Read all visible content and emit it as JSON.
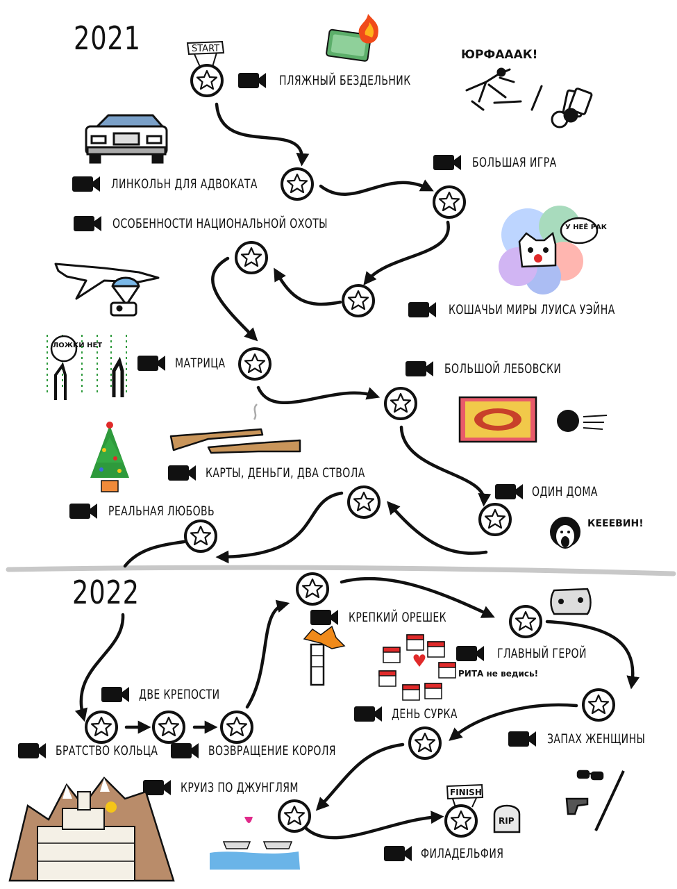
{
  "years": {
    "first": "2021",
    "second": "2022"
  },
  "badges": {
    "start": "START",
    "finish": "FINISH",
    "rip": "RIP"
  },
  "movies": [
    "ПЛЯЖНЫЙ БЕЗДЕЛЬНИК",
    "ЛИНКОЛЬН ДЛЯ АДВОКАТА",
    "БОЛЬШАЯ ИГРА",
    "ОСОБЕННОСТИ НАЦИОНАЛЬНОЙ ОХОТЫ",
    "КОШАЧЬИ МИРЫ ЛУИСА УЭЙНА",
    "МАТРИЦА",
    "БОЛЬШОЙ ЛЕБОВСКИ",
    "КАРТЫ, ДЕНЬГИ, ДВА СТВОЛА",
    "ОДИН ДОМА",
    "РЕАЛЬНАЯ ЛЮБОВЬ",
    "КРЕПКИЙ ОРЕШЕК",
    "ГЛАВНЫЙ ГЕРОЙ",
    "ДВЕ КРЕПОСТИ",
    "ДЕНЬ СУРКА",
    "БРАТСТВО КОЛЬЦА",
    "ВОЗВРАЩЕНИЕ КОРОЛЯ",
    "ЗАПАХ ЖЕНЩИНЫ",
    "КРУИЗ ПО ДЖУНГЛЯМ",
    "ФИЛАДЕЛЬФИЯ"
  ],
  "doodles": {
    "yurfaaak": "ЮРФАААК!",
    "cat_bubble": "У НЕЁ РАК",
    "matrix_bubble": "ЛОЖКИ НЕТ",
    "kevin": "КЕЕЕВИН!",
    "rita": "РИТА не ведись!"
  },
  "colors": {
    "ink": "#111111",
    "divider": "#c8c8c8",
    "tree": "#2e9a3c",
    "heart": "#e02a2a",
    "flame": "#f04a1a"
  }
}
